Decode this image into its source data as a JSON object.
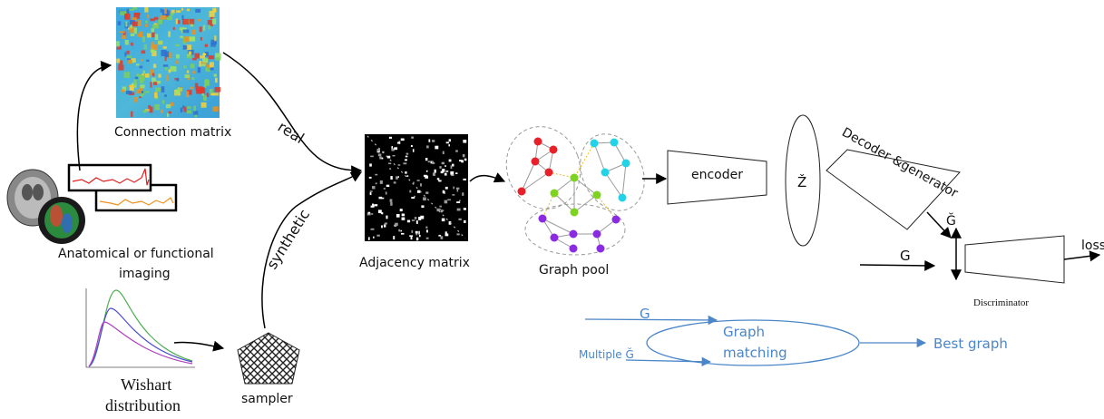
{
  "labels": {
    "connection_matrix": "Connection matrix",
    "real": "real",
    "synthetic": "synthetic",
    "imaging_line1": "Anatomical or functional",
    "imaging_line2": "imaging",
    "adjacency_matrix": "Adjacency matrix",
    "graph_pool": "Graph pool",
    "encoder": "encoder",
    "z_hat": "Ž",
    "decoder": "Decoder &generator",
    "g_hat": "Ğ",
    "g": "G",
    "loss": "loss",
    "discriminator": "Discriminator",
    "matching_g": "G",
    "graph_matching_line1": "Graph",
    "graph_matching_line2": "matching",
    "multiple_g": "Multiple  Ğ",
    "best_graph": "Best graph",
    "wishart_line1": "Wishart",
    "wishart_line2": "distribution",
    "sampler": "sampler"
  },
  "colors": {
    "text": "#111111",
    "blue": "#4a86c8",
    "node_red": "#e8202a",
    "node_cyan": "#22d3e8",
    "node_green": "#7ed321",
    "node_purple": "#8a2be2",
    "heatmap_bg": "#3a9fd8",
    "signal_red": "#e02020",
    "signal_orange": "#f0901a"
  },
  "icons": {
    "brain": "brain-scan-icon",
    "sampler": "pentagon-sampler-icon"
  }
}
